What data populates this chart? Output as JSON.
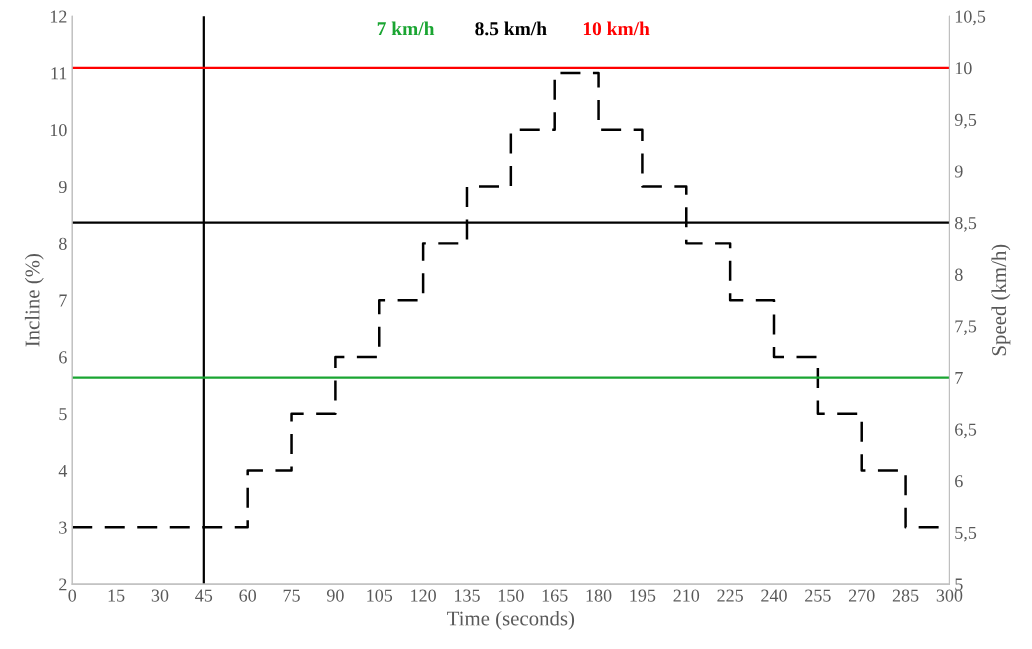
{
  "chart_data": {
    "type": "step",
    "xlabel": "Time (seconds)",
    "ylabel": "Incline (%)",
    "y2label": "Speed (km/h)",
    "x": [
      0,
      60,
      75,
      90,
      105,
      120,
      135,
      150,
      165,
      180,
      195,
      210,
      225,
      240,
      255,
      270,
      285,
      300
    ],
    "series": [
      {
        "color": "#000000",
        "line_style": "dashed",
        "values": [
          3,
          4,
          5,
          6,
          7,
          8,
          9,
          10,
          11,
          10,
          9,
          8,
          7,
          6,
          5,
          4,
          3,
          3
        ]
      }
    ],
    "xlim": [
      0,
      300
    ],
    "xticks": [
      0,
      15,
      30,
      45,
      60,
      75,
      90,
      105,
      120,
      135,
      150,
      165,
      180,
      195,
      210,
      225,
      240,
      255,
      270,
      285,
      300
    ],
    "ylim": [
      2,
      12
    ],
    "yticks": [
      2,
      3,
      4,
      5,
      6,
      7,
      8,
      9,
      10,
      11,
      12
    ],
    "y2lim": [
      5,
      10.5
    ],
    "y2ticks": [
      5,
      {
        "value": 5.5,
        "label": "5,5"
      },
      6,
      {
        "value": 6.5,
        "label": "6,5"
      },
      7,
      {
        "value": 7.5,
        "label": "7,5"
      },
      8,
      {
        "value": 8.5,
        "label": "8,5"
      },
      9,
      {
        "value": 9.5,
        "label": "9,5"
      },
      10,
      {
        "value": 10.5,
        "label": "10,5"
      }
    ],
    "ref_lines": [
      {
        "axis": "y2",
        "value": 7,
        "label": "7 km/h",
        "color": "#1aa532"
      },
      {
        "axis": "y2",
        "value": 8.5,
        "label": "8.5 km/h",
        "color": "#000000"
      },
      {
        "axis": "y2",
        "value": 10,
        "label": "10 km/h",
        "color": "#ff0000"
      },
      {
        "axis": "x",
        "value": 45,
        "color": "#000000"
      }
    ],
    "grid": false,
    "legend": false,
    "marker": "none"
  }
}
